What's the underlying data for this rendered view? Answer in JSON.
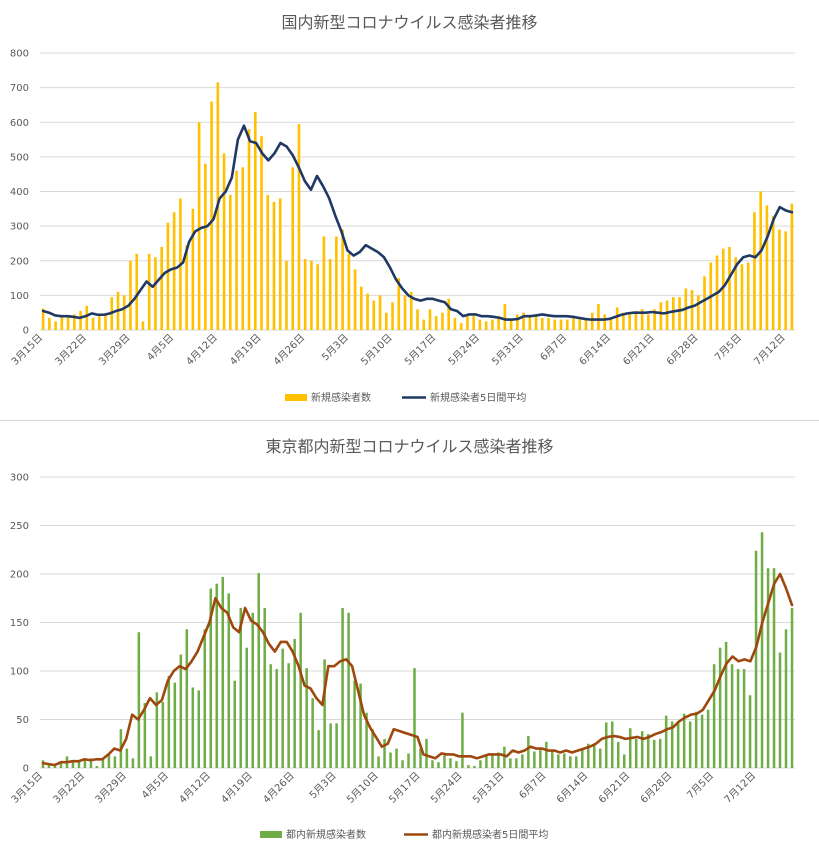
{
  "chart_data": [
    {
      "type": "bar",
      "title": "国内新型コロナウイルス感染者推移",
      "ylim": [
        0,
        800
      ],
      "yticks": [
        0,
        100,
        200,
        300,
        400,
        500,
        600,
        700,
        800
      ],
      "grid": true,
      "legend_position": "bottom",
      "start_date": "2020-03-15",
      "x_tick_labels": [
        "3月15日",
        "3月22日",
        "3月29日",
        "4月5日",
        "4月12日",
        "4月19日",
        "4月26日",
        "5月3日",
        "5月10日",
        "5月17日",
        "5月24日",
        "5月31日",
        "6月7日",
        "6月14日",
        "6月21日",
        "6月28日",
        "7月5日",
        "7月12日"
      ],
      "series": [
        {
          "name": "新規感染者数",
          "type": "bar",
          "color": "#FFC000",
          "values": [
            62,
            35,
            25,
            40,
            40,
            45,
            55,
            70,
            35,
            40,
            45,
            95,
            110,
            100,
            200,
            220,
            25,
            220,
            210,
            240,
            310,
            340,
            380,
            245,
            350,
            600,
            480,
            660,
            715,
            510,
            390,
            460,
            470,
            580,
            630,
            560,
            390,
            370,
            380,
            200,
            470,
            595,
            205,
            200,
            190,
            270,
            205,
            270,
            290,
            220,
            175,
            125,
            105,
            85,
            100,
            50,
            80,
            150,
            100,
            110,
            60,
            30,
            60,
            40,
            50,
            90,
            35,
            20,
            40,
            40,
            30,
            25,
            30,
            40,
            75,
            30,
            45,
            50,
            40,
            40,
            35,
            35,
            30,
            30,
            30,
            35,
            35,
            30,
            50,
            75,
            45,
            35,
            65,
            50,
            45,
            55,
            60,
            45,
            60,
            80,
            85,
            95,
            95,
            120,
            115,
            100,
            155,
            195,
            215,
            235,
            240,
            210,
            190,
            195,
            340,
            400,
            360,
            330,
            290,
            285,
            365
          ]
        },
        {
          "name": "新規感染者5日間平均",
          "type": "line",
          "color": "#203864",
          "values": [
            55,
            50,
            42,
            40,
            40,
            38,
            35,
            40,
            48,
            44,
            44,
            48,
            55,
            60,
            70,
            90,
            115,
            140,
            125,
            145,
            165,
            175,
            180,
            195,
            255,
            285,
            295,
            300,
            320,
            380,
            400,
            440,
            550,
            590,
            545,
            540,
            510,
            490,
            510,
            540,
            530,
            505,
            470,
            430,
            405,
            445,
            415,
            380,
            330,
            285,
            230,
            215,
            225,
            245,
            235,
            225,
            210,
            180,
            145,
            120,
            100,
            90,
            85,
            90,
            90,
            85,
            80,
            60,
            55,
            40,
            45,
            45,
            40,
            40,
            38,
            35,
            30,
            30,
            32,
            40,
            40,
            42,
            45,
            42,
            40,
            40,
            40,
            38,
            35,
            32,
            30,
            30,
            30,
            32,
            38,
            44,
            48,
            50,
            50,
            50,
            52,
            50,
            48,
            52,
            55,
            58,
            65,
            70,
            80,
            90,
            100,
            110,
            130,
            160,
            190,
            210,
            215,
            210,
            230,
            270,
            320,
            355,
            345,
            340
          ]
        }
      ]
    },
    {
      "type": "bar",
      "title": "東京都内新型コロナウイルス感染者推移",
      "ylim": [
        0,
        300
      ],
      "yticks": [
        0,
        50,
        100,
        150,
        200,
        250,
        300
      ],
      "grid": true,
      "legend_position": "bottom",
      "start_date": "2020-03-15",
      "x_tick_labels": [
        "3月15日",
        "3月22日",
        "3月29日",
        "4月5日",
        "4月12日",
        "4月19日",
        "4月26日",
        "5月3日",
        "5月10日",
        "5月17日",
        "5月24日",
        "5月31日",
        "6月7日",
        "6月14日",
        "6月21日",
        "6月28日",
        "7月5日",
        "7月12日"
      ],
      "series": [
        {
          "name": "都内新規感染者数",
          "type": "bar",
          "color": "#70AD47",
          "values": [
            8,
            3,
            2,
            7,
            12,
            7,
            7,
            8,
            10,
            2,
            10,
            14,
            12,
            40,
            20,
            10,
            140,
            67,
            12,
            78,
            68,
            95,
            88,
            117,
            143,
            83,
            80,
            143,
            185,
            190,
            197,
            180,
            90,
            165,
            124,
            160,
            201,
            165,
            107,
            102,
            123,
            108,
            133,
            160,
            103,
            72,
            39,
            112,
            46,
            46,
            165,
            160,
            90,
            87,
            57,
            40,
            12,
            30,
            16,
            20,
            8,
            15,
            103,
            20,
            30,
            8,
            6,
            13,
            10,
            7,
            57,
            3,
            2,
            8,
            14,
            13,
            16,
            22,
            10,
            10,
            14,
            33,
            17,
            20,
            27,
            18,
            14,
            15,
            12,
            12,
            20,
            25,
            24,
            20,
            47,
            48,
            27,
            14,
            41,
            30,
            38,
            35,
            29,
            30,
            54,
            48,
            48,
            56,
            48,
            58,
            55,
            60,
            107,
            124,
            130,
            107,
            102,
            102,
            75,
            224,
            243,
            206,
            206,
            119,
            143,
            165
          ]
        },
        {
          "name": "都内新規感染者5日間平均",
          "type": "line",
          "color": "#9E480E",
          "values": [
            5,
            4,
            3,
            6,
            6,
            7,
            7,
            9,
            8,
            9,
            9,
            14,
            20,
            18,
            30,
            55,
            50,
            60,
            72,
            65,
            70,
            90,
            100,
            105,
            102,
            110,
            120,
            135,
            150,
            175,
            165,
            160,
            145,
            140,
            165,
            152,
            148,
            140,
            128,
            120,
            130,
            130,
            120,
            105,
            85,
            82,
            72,
            65,
            105,
            105,
            110,
            112,
            105,
            80,
            55,
            42,
            32,
            22,
            25,
            40,
            38,
            36,
            34,
            32,
            14,
            12,
            10,
            15,
            14,
            14,
            12,
            12,
            12,
            10,
            12,
            14,
            14,
            14,
            12,
            18,
            16,
            18,
            22,
            20,
            20,
            18,
            18,
            16,
            18,
            16,
            18,
            20,
            22,
            25,
            30,
            32,
            33,
            32,
            30,
            31,
            32,
            30,
            32,
            35,
            37,
            40,
            42,
            48,
            52,
            55,
            56,
            60,
            70,
            80,
            95,
            108,
            115,
            110,
            112,
            110,
            125,
            150,
            170,
            190,
            200,
            185,
            168
          ]
        }
      ]
    }
  ]
}
